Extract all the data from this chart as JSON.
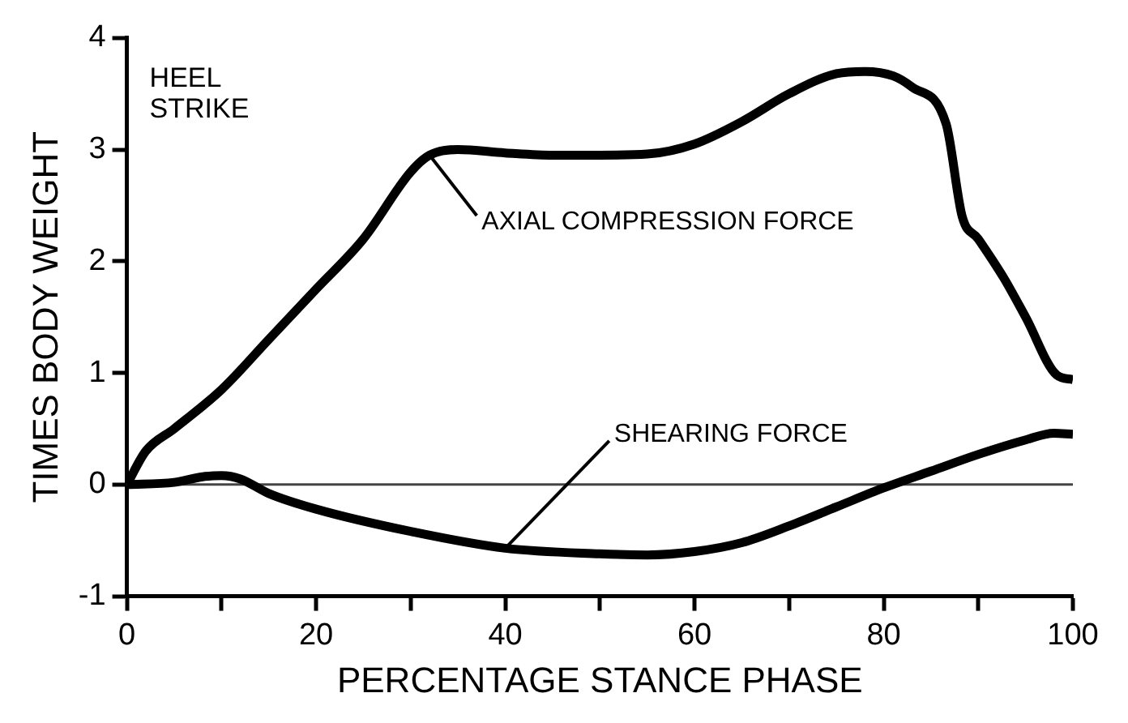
{
  "chart_data": {
    "type": "line",
    "xlabel": "PERCENTAGE STANCE PHASE",
    "ylabel": "TIMES BODY WEIGHT",
    "xlim": [
      0,
      100
    ],
    "xticks": [
      0,
      {
        "value": 10,
        "label": null
      },
      20,
      {
        "value": 30,
        "label": null
      },
      40,
      {
        "value": 50,
        "label": null
      },
      60,
      {
        "value": 70,
        "label": null
      },
      80,
      {
        "value": 90,
        "label": null
      },
      100
    ],
    "ylim": [
      -1,
      4
    ],
    "yticks": [
      -1,
      0,
      1,
      2,
      3,
      4
    ],
    "grid": false,
    "legend": false,
    "marker": "none",
    "line_style": "solid",
    "series": [
      {
        "name": "AXIAL COMPRESSION FORCE",
        "color": "#000000",
        "x": [
          0,
          2,
          5,
          10,
          15,
          20,
          25,
          30,
          32,
          35,
          40,
          45,
          50,
          55,
          60,
          65,
          70,
          75,
          78,
          81,
          83,
          86.6,
          88.3,
          90,
          92.7,
          95,
          98.3,
          100
        ],
        "values": [
          0,
          0.3,
          0.5,
          0.85,
          1.3,
          1.75,
          2.2,
          2.8,
          2.95,
          3.0,
          2.97,
          2.95,
          2.95,
          2.96,
          3.05,
          3.25,
          3.5,
          3.68,
          3.7,
          3.66,
          3.56,
          3.23,
          2.4,
          2.2,
          1.85,
          1.5,
          0.98,
          0.94
        ]
      },
      {
        "name": "SHEARING FORCE",
        "color": "#000000",
        "x": [
          0,
          5,
          8,
          10,
          12,
          15,
          20,
          30,
          40,
          50,
          55,
          60,
          65,
          70,
          75,
          80,
          85,
          90,
          95,
          98,
          100
        ],
        "values": [
          0,
          0.02,
          0.07,
          0.08,
          0.05,
          -0.08,
          -0.22,
          -0.42,
          -0.57,
          -0.62,
          -0.63,
          -0.6,
          -0.52,
          -0.37,
          -0.2,
          -0.03,
          0.12,
          0.27,
          0.4,
          0.46,
          0.45
        ]
      }
    ],
    "ref_lines": [
      {
        "axis": "y",
        "value": 0,
        "color": "#444444"
      }
    ],
    "annotations": [
      "HEEL STRIKE"
    ]
  }
}
